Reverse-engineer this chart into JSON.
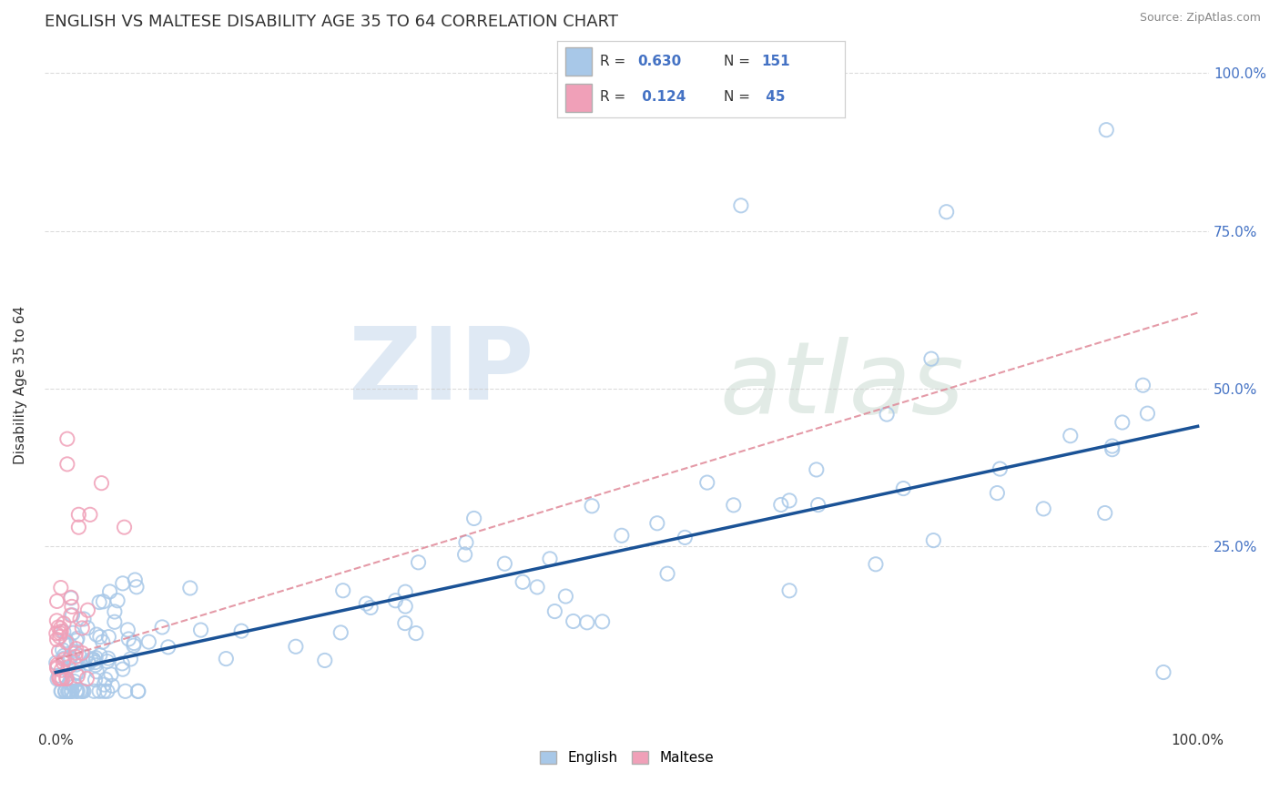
{
  "title": "ENGLISH VS MALTESE DISABILITY AGE 35 TO 64 CORRELATION CHART",
  "source": "Source: ZipAtlas.com",
  "ylabel": "Disability Age 35 to 64",
  "xlim": [
    -0.01,
    1.01
  ],
  "ylim": [
    -0.04,
    1.05
  ],
  "english_color": "#a8c8e8",
  "maltese_color": "#f0a0b8",
  "english_line_color": "#1a5296",
  "maltese_line_color": "#e08898",
  "R_english": 0.63,
  "N_english": 151,
  "R_maltese": 0.124,
  "N_maltese": 45,
  "legend_labels": [
    "English",
    "Maltese"
  ],
  "background_color": "#ffffff",
  "grid_color": "#cccccc",
  "watermark_zip": "ZIP",
  "watermark_atlas": "atlas",
  "eng_line_x0": 0.0,
  "eng_line_y0": 0.05,
  "eng_line_x1": 1.0,
  "eng_line_y1": 0.44,
  "malt_line_x0": 0.0,
  "malt_line_y0": 0.07,
  "malt_line_x1": 1.0,
  "malt_line_y1": 0.62
}
